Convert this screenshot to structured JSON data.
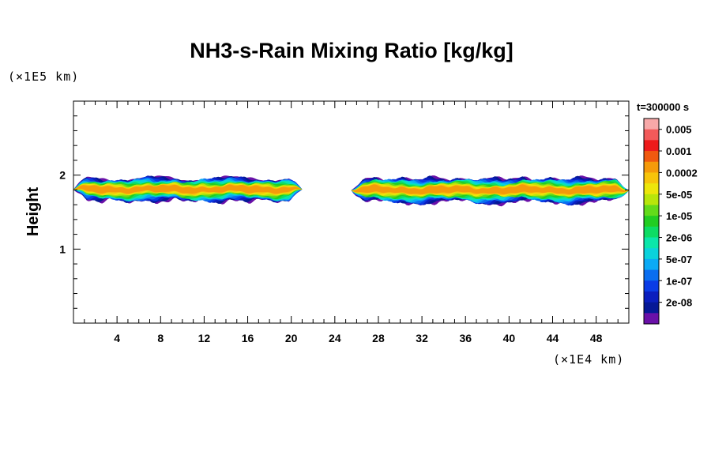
{
  "chart_data": {
    "type": "heatmap",
    "title": "NH3-s-Rain Mixing Ratio [kg/kg]",
    "ylabel": "Height",
    "x_unit": "(×1E4 km)",
    "y_unit": "(×1E5 km)",
    "time_label": "t=300000 s",
    "xlim": [
      0,
      51
    ],
    "ylim": [
      0,
      3
    ],
    "x_ticks": [
      4,
      8,
      12,
      16,
      20,
      24,
      28,
      32,
      36,
      40,
      44,
      48
    ],
    "y_ticks": [
      1,
      2
    ],
    "colorbar": {
      "labels": [
        "0.005",
        "0.001",
        "0.0002",
        "5e-05",
        "1e-05",
        "2e-06",
        "5e-07",
        "1e-07",
        "2e-08"
      ],
      "colors": [
        "#f7a8a8",
        "#f25a5a",
        "#ee1b1b",
        "#f0590f",
        "#f59a0a",
        "#f7c40a",
        "#ede60a",
        "#b8e60a",
        "#63db1a",
        "#22cd22",
        "#0ddc64",
        "#0ae6aa",
        "#0ad2dc",
        "#0aaaf5",
        "#0a6ef0",
        "#0a3ce6",
        "#0a1ebe",
        "#061896",
        "#6a10a8"
      ]
    },
    "bands": [
      {
        "x_start": 0.0,
        "x_end": 21.0,
        "y_bottom": 1.62,
        "y_top": 2.0,
        "peak": "0.001"
      },
      {
        "x_start": 25.5,
        "x_end": 51.0,
        "y_bottom": 1.6,
        "y_top": 2.0,
        "peak": "0.001"
      }
    ]
  }
}
